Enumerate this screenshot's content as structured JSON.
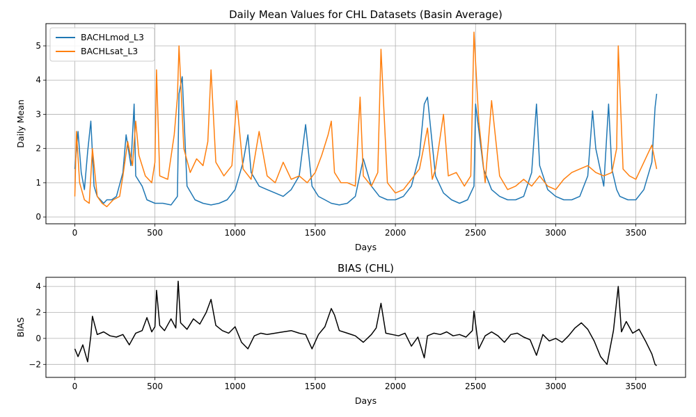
{
  "chart_data": [
    {
      "type": "line",
      "title": "Daily Mean Values for CHL Datasets (Basin Average)",
      "xlabel": "Days",
      "ylabel": "Daily Mean",
      "xlim": [
        -180,
        3810
      ],
      "ylim": [
        -0.2,
        5.65
      ],
      "xticks": [
        0,
        500,
        1000,
        1500,
        2000,
        2500,
        3000,
        3500
      ],
      "yticks": [
        0,
        1,
        2,
        3,
        4,
        5
      ],
      "grid": true,
      "legend": "top-left",
      "series": [
        {
          "name": "BACHLmod_L3",
          "color": "#1f77b4",
          "x": [
            0,
            20,
            40,
            60,
            80,
            100,
            120,
            140,
            160,
            180,
            200,
            230,
            260,
            300,
            320,
            350,
            370,
            380,
            420,
            450,
            500,
            550,
            600,
            640,
            650,
            670,
            700,
            750,
            800,
            850,
            900,
            950,
            1000,
            1050,
            1080,
            1100,
            1150,
            1200,
            1250,
            1300,
            1350,
            1400,
            1440,
            1480,
            1520,
            1560,
            1600,
            1650,
            1700,
            1750,
            1800,
            1850,
            1900,
            1950,
            2000,
            2050,
            2100,
            2150,
            2180,
            2200,
            2250,
            2300,
            2350,
            2400,
            2450,
            2490,
            2500,
            2550,
            2600,
            2650,
            2700,
            2750,
            2800,
            2850,
            2880,
            2900,
            2950,
            3000,
            3050,
            3100,
            3150,
            3200,
            3230,
            3250,
            3300,
            3330,
            3350,
            3380,
            3400,
            3450,
            3500,
            3550,
            3600,
            3620,
            3630
          ],
          "values": [
            1.4,
            2.5,
            1.3,
            0.8,
            1.9,
            2.8,
            0.9,
            0.6,
            0.5,
            0.4,
            0.5,
            0.5,
            0.6,
            1.3,
            2.4,
            1.5,
            3.3,
            1.2,
            0.9,
            0.5,
            0.4,
            0.4,
            0.35,
            0.6,
            3.6,
            4.1,
            0.9,
            0.5,
            0.4,
            0.35,
            0.4,
            0.5,
            0.8,
            1.6,
            2.4,
            1.3,
            0.9,
            0.8,
            0.7,
            0.6,
            0.8,
            1.2,
            2.7,
            0.9,
            0.6,
            0.5,
            0.4,
            0.35,
            0.4,
            0.6,
            1.7,
            0.9,
            0.6,
            0.5,
            0.5,
            0.6,
            0.9,
            1.8,
            3.3,
            3.5,
            1.2,
            0.7,
            0.5,
            0.4,
            0.5,
            0.9,
            3.3,
            1.4,
            0.8,
            0.6,
            0.5,
            0.5,
            0.6,
            1.3,
            3.3,
            1.5,
            0.8,
            0.6,
            0.5,
            0.5,
            0.6,
            1.2,
            3.1,
            2.0,
            0.9,
            3.3,
            1.4,
            0.8,
            0.6,
            0.5,
            0.5,
            0.8,
            1.6,
            3.2,
            3.6
          ]
        },
        {
          "name": "BACHLsat_L3",
          "color": "#ff7f0e",
          "x": [
            0,
            10,
            30,
            60,
            90,
            110,
            140,
            170,
            200,
            240,
            280,
            300,
            330,
            360,
            380,
            400,
            440,
            480,
            500,
            510,
            530,
            580,
            620,
            640,
            650,
            680,
            720,
            760,
            800,
            830,
            850,
            880,
            930,
            980,
            1010,
            1050,
            1100,
            1150,
            1200,
            1250,
            1300,
            1350,
            1400,
            1450,
            1500,
            1540,
            1580,
            1600,
            1620,
            1660,
            1700,
            1750,
            1780,
            1800,
            1850,
            1890,
            1910,
            1950,
            2000,
            2050,
            2100,
            2150,
            2200,
            2230,
            2250,
            2300,
            2330,
            2380,
            2430,
            2470,
            2490,
            2520,
            2560,
            2600,
            2650,
            2700,
            2750,
            2800,
            2850,
            2900,
            2950,
            3000,
            3050,
            3100,
            3150,
            3200,
            3250,
            3300,
            3350,
            3380,
            3390,
            3420,
            3460,
            3500,
            3550,
            3600,
            3630
          ],
          "values": [
            0.6,
            2.5,
            1.0,
            0.5,
            0.4,
            2.0,
            0.6,
            0.4,
            0.3,
            0.5,
            0.6,
            1.2,
            2.2,
            1.5,
            2.8,
            1.8,
            1.2,
            1.0,
            1.6,
            4.3,
            1.2,
            1.1,
            2.4,
            3.5,
            5.0,
            2.0,
            1.3,
            1.7,
            1.5,
            2.2,
            4.3,
            1.6,
            1.2,
            1.5,
            3.4,
            1.4,
            1.1,
            2.5,
            1.2,
            1.0,
            1.6,
            1.1,
            1.2,
            1.0,
            1.3,
            1.8,
            2.4,
            2.8,
            1.3,
            1.0,
            1.0,
            0.9,
            3.5,
            1.2,
            0.9,
            1.3,
            4.9,
            1.0,
            0.7,
            0.8,
            1.1,
            1.4,
            2.6,
            1.1,
            1.4,
            3.0,
            1.2,
            1.3,
            0.9,
            1.2,
            5.4,
            2.8,
            1.0,
            3.4,
            1.2,
            0.8,
            0.9,
            1.1,
            0.9,
            1.2,
            0.9,
            0.8,
            1.1,
            1.3,
            1.4,
            1.5,
            1.3,
            1.2,
            1.3,
            2.0,
            5.0,
            1.4,
            1.2,
            1.1,
            1.6,
            2.1,
            1.4
          ]
        }
      ]
    },
    {
      "type": "line",
      "title": "BIAS (CHL)",
      "xlabel": "Days",
      "ylabel": "BIAS",
      "xlim": [
        -180,
        3810
      ],
      "ylim": [
        -3,
        4.7
      ],
      "xticks": [
        0,
        500,
        1000,
        1500,
        2000,
        2500,
        3000,
        3500
      ],
      "yticks": [
        -2,
        0,
        2,
        4
      ],
      "grid": true,
      "series": [
        {
          "color": "#000000",
          "x": [
            0,
            20,
            50,
            80,
            100,
            110,
            140,
            180,
            220,
            260,
            300,
            340,
            380,
            420,
            450,
            480,
            500,
            510,
            530,
            560,
            600,
            630,
            645,
            660,
            700,
            740,
            780,
            820,
            850,
            880,
            920,
            960,
            1000,
            1040,
            1080,
            1120,
            1160,
            1200,
            1250,
            1300,
            1350,
            1400,
            1440,
            1480,
            1520,
            1560,
            1600,
            1620,
            1650,
            1700,
            1750,
            1800,
            1850,
            1880,
            1910,
            1940,
            1980,
            2020,
            2060,
            2100,
            2140,
            2180,
            2200,
            2240,
            2280,
            2320,
            2360,
            2400,
            2440,
            2480,
            2490,
            2520,
            2560,
            2600,
            2640,
            2680,
            2720,
            2760,
            2800,
            2840,
            2880,
            2920,
            2960,
            3000,
            3040,
            3080,
            3120,
            3160,
            3200,
            3240,
            3280,
            3320,
            3360,
            3390,
            3410,
            3440,
            3480,
            3520,
            3560,
            3600,
            3620,
            3630
          ],
          "values": [
            -0.8,
            -1.4,
            -0.5,
            -1.8,
            0.2,
            1.7,
            0.3,
            0.5,
            0.2,
            0.1,
            0.3,
            -0.5,
            0.4,
            0.6,
            1.6,
            0.5,
            0.9,
            3.7,
            1.0,
            0.6,
            1.5,
            0.8,
            4.4,
            1.2,
            0.7,
            1.5,
            1.1,
            2.0,
            3.0,
            1.0,
            0.6,
            0.4,
            0.9,
            -0.3,
            -0.8,
            0.2,
            0.4,
            0.3,
            0.4,
            0.5,
            0.6,
            0.4,
            0.3,
            -0.8,
            0.3,
            0.9,
            2.3,
            1.8,
            0.6,
            0.4,
            0.2,
            -0.3,
            0.3,
            0.8,
            2.7,
            0.4,
            0.3,
            0.2,
            0.4,
            -0.6,
            0.1,
            -1.5,
            0.2,
            0.4,
            0.3,
            0.5,
            0.2,
            0.3,
            0.1,
            0.6,
            2.1,
            -0.8,
            0.2,
            0.5,
            0.2,
            -0.3,
            0.3,
            0.4,
            0.1,
            -0.1,
            -1.3,
            0.3,
            -0.2,
            0.0,
            -0.3,
            0.2,
            0.8,
            1.2,
            0.7,
            -0.2,
            -1.4,
            -2.0,
            0.6,
            4.0,
            0.5,
            1.3,
            0.4,
            0.7,
            -0.2,
            -1.2,
            -2.0,
            -2.1
          ]
        }
      ]
    }
  ]
}
